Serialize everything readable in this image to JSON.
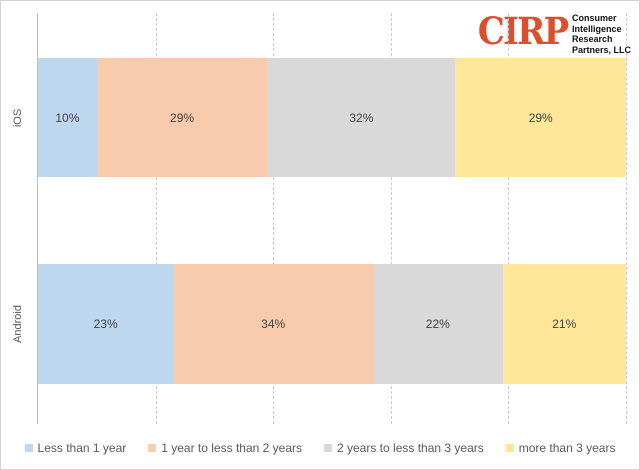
{
  "logo": {
    "mark": "CIRP",
    "mark_color": "#dd4f2c",
    "text": "Consumer\nIntelligence\nResearch\nPartners, LLC"
  },
  "chart_data": {
    "type": "bar",
    "orientation": "horizontal-stacked",
    "title": "",
    "xlabel": "",
    "ylabel": "",
    "unit": "%",
    "xlim": [
      0,
      100
    ],
    "gridlines_percent": [
      20,
      40,
      60,
      80,
      100
    ],
    "gridline_style": "dashed",
    "legend_position": "bottom",
    "categories": [
      "iOS",
      "Android"
    ],
    "series": [
      {
        "name": "Less than 1 year",
        "color": "#bdd7ee",
        "values": [
          10,
          23
        ]
      },
      {
        "name": "1 year to less than 2 years",
        "color": "#f8cbad",
        "values": [
          29,
          34
        ]
      },
      {
        "name": "2 years to less than 3 years",
        "color": "#d9d9d9",
        "values": [
          32,
          22
        ]
      },
      {
        "name": "more than 3 years",
        "color": "#ffe699",
        "values": [
          29,
          21
        ]
      }
    ]
  }
}
